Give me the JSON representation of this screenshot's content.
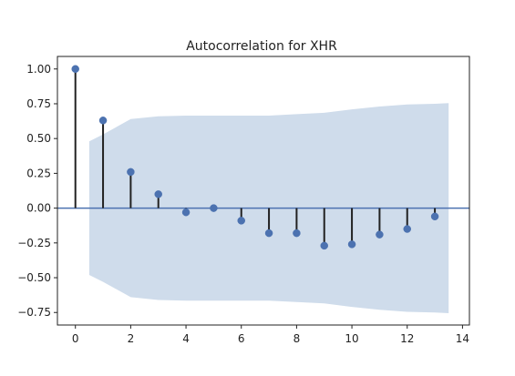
{
  "chart_data": {
    "type": "stem",
    "title": "Autocorrelation for XHR",
    "xlabel": "",
    "ylabel": "",
    "xlim": [
      -0.65,
      14.25
    ],
    "ylim": [
      -0.84,
      1.09
    ],
    "x_ticks": [
      0,
      2,
      4,
      6,
      8,
      10,
      12,
      14
    ],
    "x_tick_labels": [
      "0",
      "2",
      "4",
      "6",
      "8",
      "10",
      "12",
      "14"
    ],
    "y_ticks": [
      1.0,
      0.75,
      0.5,
      0.25,
      0.0,
      -0.25,
      -0.5,
      -0.75
    ],
    "y_tick_labels": [
      "1.00",
      "0.75",
      "0.50",
      "0.25",
      "0.00",
      "−0.25",
      "−0.50",
      "−0.75"
    ],
    "grid": false,
    "legend": "none",
    "lags": [
      0,
      1,
      2,
      3,
      4,
      5,
      6,
      7,
      8,
      9,
      10,
      11,
      12,
      13
    ],
    "acf": [
      1.0,
      0.63,
      0.26,
      0.1,
      -0.03,
      0.0,
      -0.09,
      -0.18,
      -0.18,
      -0.27,
      -0.26,
      -0.19,
      -0.15,
      -0.06
    ],
    "confidence_band": {
      "x": [
        0.5,
        1,
        2,
        3,
        4,
        5,
        6,
        7,
        8,
        9,
        10,
        11,
        12,
        13,
        13.5
      ],
      "upper": [
        0.48,
        0.53,
        0.64,
        0.66,
        0.665,
        0.665,
        0.665,
        0.665,
        0.675,
        0.685,
        0.71,
        0.73,
        0.745,
        0.75,
        0.755
      ],
      "lower": [
        -0.48,
        -0.53,
        -0.64,
        -0.66,
        -0.665,
        -0.665,
        -0.665,
        -0.665,
        -0.675,
        -0.685,
        -0.71,
        -0.73,
        -0.745,
        -0.75,
        -0.755
      ]
    },
    "colors": {
      "band": "#cfdceb",
      "stem": "#222222",
      "marker": "#4c72b0",
      "zero_line": "#4c72b0",
      "axes": "#222222"
    }
  }
}
